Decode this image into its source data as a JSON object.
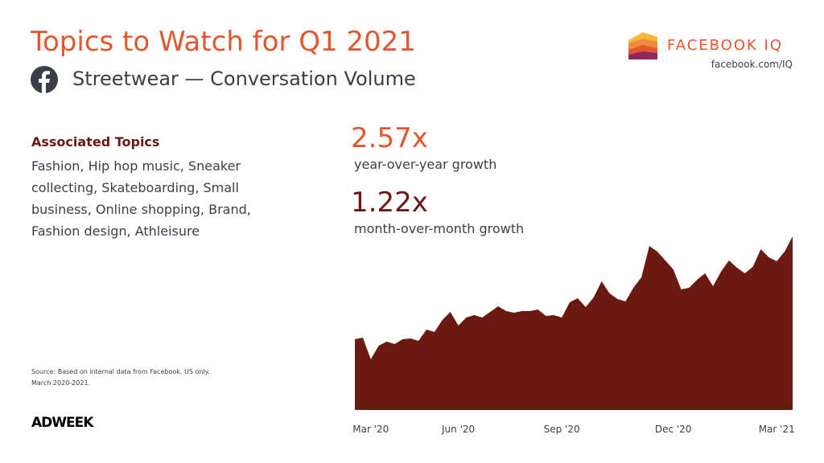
{
  "chart_data": {
    "type": "area",
    "title": "Topics to Watch for Q1 2021",
    "subtitle": "Streetwear — Conversation Volume",
    "categories": [
      null,
      null,
      "Mar '20",
      null,
      null,
      null,
      null,
      null,
      null,
      null,
      null,
      null,
      null,
      "Jun '20",
      null,
      null,
      null,
      null,
      null,
      null,
      null,
      null,
      null,
      null,
      null,
      null,
      "Sep '20",
      null,
      null,
      null,
      null,
      null,
      null,
      null,
      null,
      null,
      null,
      null,
      null,
      null,
      "Dec '20",
      null,
      null,
      null,
      null,
      null,
      null,
      null,
      null,
      null,
      null,
      null,
      null,
      "Mar '21",
      null,
      null
    ],
    "values": [
      88,
      90,
      63,
      80,
      85,
      82,
      88,
      89,
      86,
      100,
      97,
      112,
      122,
      105,
      115,
      118,
      115,
      122,
      129,
      123,
      121,
      123,
      123,
      125,
      117,
      118,
      115,
      134,
      139,
      128,
      140,
      160,
      145,
      138,
      135,
      152,
      165,
      204,
      197,
      186,
      175,
      150,
      152,
      162,
      170,
      154,
      172,
      186,
      177,
      170,
      178,
      200,
      190,
      185,
      197,
      216
    ],
    "color": "#6b1a12",
    "ylim": [
      0,
      216
    ]
  },
  "brand": {
    "name": "FACEBOOK IQ",
    "url": "facebook.com/IQ",
    "publisher": "ADWEEK"
  },
  "topics": {
    "heading": "Associated Topics",
    "text": "Fashion, Hip hop music, Sneaker collecting, Skateboarding, Small business, Online shopping, Brand, Fashion design, Athleisure"
  },
  "stats": [
    {
      "value": "2.57x",
      "label": "year-over-year growth"
    },
    {
      "value": "1.22x",
      "label": "month-over-month growth"
    }
  ],
  "source": [
    "Source: Based on internal data from Facebook, US only.",
    "March 2020-2021."
  ]
}
